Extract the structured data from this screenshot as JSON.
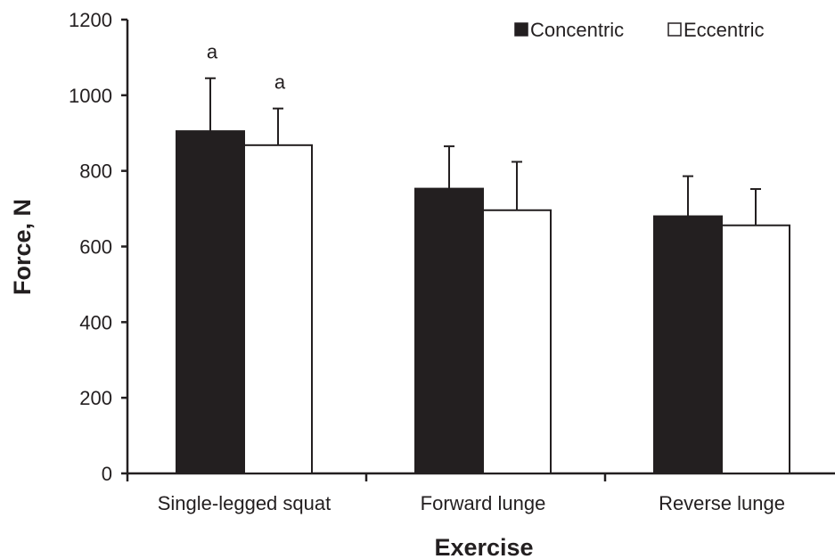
{
  "chart_data": {
    "type": "bar",
    "categories": [
      "Single-legged squat",
      "Forward lunge",
      "Reverse lunge"
    ],
    "series": [
      {
        "name": "Concentric",
        "values": [
          905,
          753,
          680
        ],
        "errors": [
          140,
          112,
          106
        ],
        "color": "#231f20"
      },
      {
        "name": "Eccentric",
        "values": [
          868,
          696,
          656
        ],
        "errors": [
          97,
          128,
          96
        ],
        "color": "#ffffff"
      }
    ],
    "annotations": [
      {
        "category": "Single-legged squat",
        "series": "Concentric",
        "text": "a"
      },
      {
        "category": "Single-legged squat",
        "series": "Eccentric",
        "text": "a"
      }
    ],
    "xlabel": "Exercise",
    "ylabel": "Force, N",
    "ylim": [
      0,
      1200
    ],
    "yticks": [
      0,
      200,
      400,
      600,
      800,
      1000,
      1200
    ],
    "grid": false,
    "legend_position": "top-right",
    "error_bars": "positive-only"
  }
}
